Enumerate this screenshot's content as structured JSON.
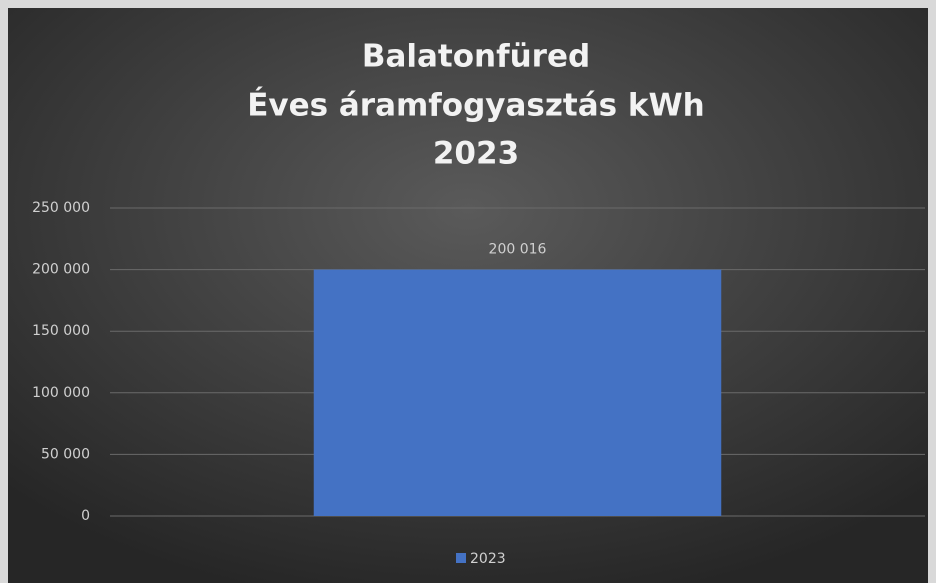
{
  "chart_data": {
    "type": "bar",
    "title": [
      "Balatonfüred",
      "Éves áramfogyasztás kWh",
      "2023"
    ],
    "categories": [
      null
    ],
    "series": [
      {
        "name": "2023",
        "color": "#4472c4",
        "values": [
          200016
        ],
        "value_labels": [
          "200 016"
        ]
      }
    ],
    "ylim": [
      0,
      250000
    ],
    "yticks": [
      {
        "value": 0,
        "label": "0"
      },
      {
        "value": 50000,
        "label": "50 000"
      },
      {
        "value": 100000,
        "label": "100 000"
      },
      {
        "value": 150000,
        "label": "150 000"
      },
      {
        "value": 200000,
        "label": "200 000"
      },
      {
        "value": 250000,
        "label": "250 000"
      }
    ],
    "grid": true,
    "legend": "bottom"
  }
}
